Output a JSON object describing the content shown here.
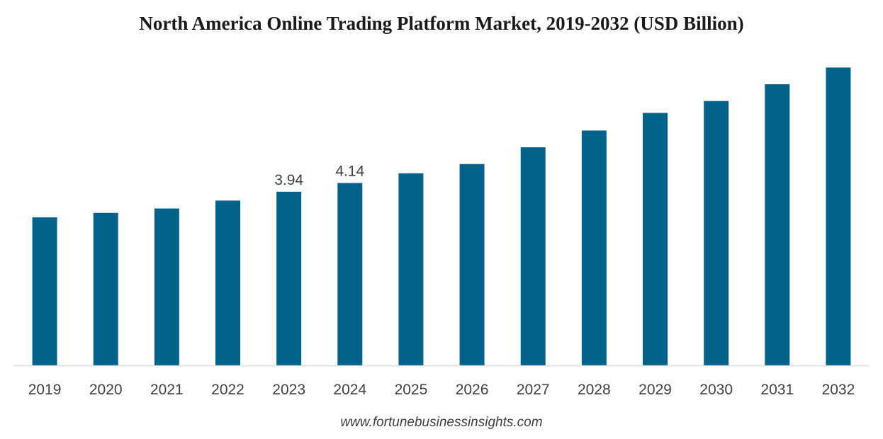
{
  "chart_data": {
    "type": "bar",
    "title": "North America Online Trading Platform Market, 2019-2032 (USD Billion)",
    "xlabel": "",
    "ylabel": "",
    "categories": [
      "2019",
      "2020",
      "2021",
      "2022",
      "2023",
      "2024",
      "2025",
      "2026",
      "2027",
      "2028",
      "2029",
      "2030",
      "2031",
      "2032"
    ],
    "values": [
      3.36,
      3.46,
      3.56,
      3.74,
      3.94,
      4.14,
      4.36,
      4.57,
      4.95,
      5.33,
      5.73,
      6.0,
      6.38,
      6.76
    ],
    "data_labels": [
      "",
      "",
      "",
      "",
      "3.94",
      "4.14",
      "",
      "",
      "",
      "",
      "",
      "",
      "",
      ""
    ],
    "ylim": [
      0,
      7.2
    ],
    "grid": false,
    "legend": "none",
    "bar_color": "#03628a",
    "axis_color": "#d9d9d9"
  },
  "source": "www.fortunebusinessinsights.com"
}
